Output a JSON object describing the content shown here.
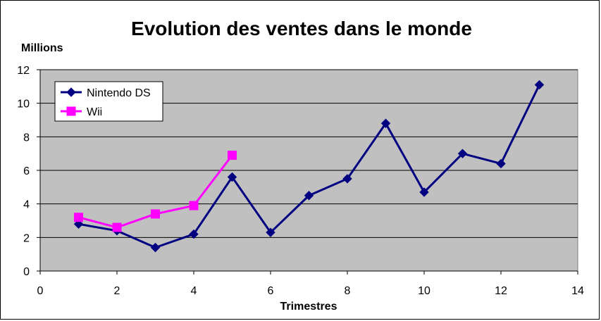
{
  "chart_data": {
    "type": "line",
    "title": "Evolution des ventes dans le monde",
    "ylabel": "Millions",
    "xlabel": "Trimestres",
    "xlim": [
      0,
      14
    ],
    "ylim": [
      0,
      12
    ],
    "x_ticks": [
      "0",
      "2",
      "4",
      "6",
      "8",
      "10",
      "12",
      "14"
    ],
    "y_ticks": [
      "0",
      "2",
      "4",
      "6",
      "8",
      "10",
      "12"
    ],
    "grid": "horizontal",
    "plot_background": "#c0c0c0",
    "legend_position": "top-left",
    "series": [
      {
        "name": "Nintendo DS",
        "color": "#000080",
        "marker": "diamond",
        "x": [
          1,
          2,
          3,
          4,
          5,
          6,
          7,
          8,
          9,
          10,
          11,
          12,
          13
        ],
        "y": [
          2.8,
          2.4,
          1.4,
          2.2,
          5.6,
          2.3,
          4.5,
          5.5,
          8.8,
          4.7,
          7.0,
          6.4,
          11.1
        ]
      },
      {
        "name": "Wii",
        "color": "#ff00ff",
        "marker": "square",
        "x": [
          1,
          2,
          3,
          4,
          5
        ],
        "y": [
          3.2,
          2.6,
          3.4,
          3.9,
          6.9
        ]
      }
    ]
  }
}
